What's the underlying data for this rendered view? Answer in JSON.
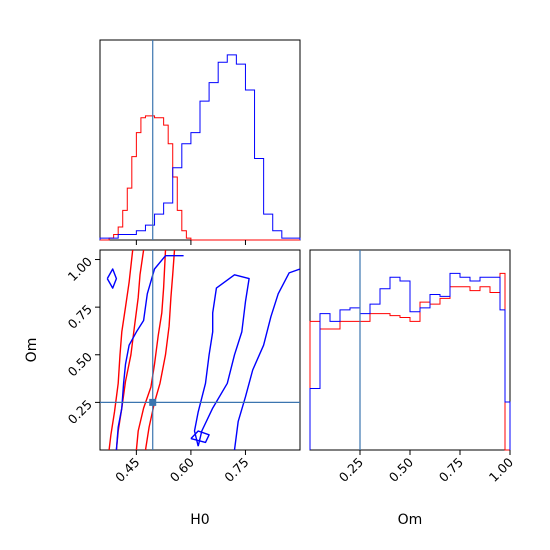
{
  "chart_data": {
    "type": "corner",
    "panels": {
      "h0_hist": {
        "type": "histogram",
        "xlim": [
          0.35,
          0.9
        ],
        "truth": 0.495,
        "series": [
          {
            "color": "#ff0000",
            "edges": [
              0.35,
              0.375,
              0.3875,
              0.4,
              0.4125,
              0.425,
              0.4375,
              0.45,
              0.4625,
              0.475,
              0.4875,
              0.5,
              0.5125,
              0.525,
              0.5375,
              0.55,
              0.5625,
              0.575,
              0.5875,
              0.6,
              0.9
            ],
            "heights": [
              0,
              0.01,
              0.03,
              0.07,
              0.16,
              0.28,
              0.45,
              0.58,
              0.66,
              0.67,
              0.67,
              0.66,
              0.66,
              0.62,
              0.52,
              0.34,
              0.16,
              0.05,
              0.01,
              0
            ]
          },
          {
            "color": "#0000ff",
            "edges": [
              0.35,
              0.4,
              0.45,
              0.475,
              0.5,
              0.525,
              0.55,
              0.575,
              0.6,
              0.625,
              0.65,
              0.675,
              0.7,
              0.725,
              0.75,
              0.775,
              0.8,
              0.825,
              0.85,
              0.9
            ],
            "heights": [
              0.01,
              0.03,
              0.05,
              0.08,
              0.14,
              0.2,
              0.39,
              0.52,
              0.58,
              0.75,
              0.85,
              0.96,
              1.0,
              0.95,
              0.81,
              0.44,
              0.14,
              0.05,
              0.01
            ]
          }
        ]
      },
      "om_hist": {
        "type": "histogram",
        "xlim": [
          0.0,
          1.0
        ],
        "xlabel": "Om",
        "xticks": [
          "0.25",
          "0.50",
          "0.75",
          "1.00"
        ],
        "truth": 0.25,
        "series": [
          {
            "color": "#ff0000",
            "edges": [
              0.0,
              0.05,
              0.15,
              0.2,
              0.3,
              0.35,
              0.4,
              0.45,
              0.5,
              0.55,
              0.6,
              0.65,
              0.7,
              0.75,
              0.8,
              0.85,
              0.9,
              0.95,
              0.975,
              1.0
            ],
            "heights": [
              0.67,
              0.63,
              0.67,
              0.67,
              0.71,
              0.71,
              0.7,
              0.69,
              0.67,
              0.77,
              0.76,
              0.79,
              0.85,
              0.85,
              0.83,
              0.85,
              0.82,
              0.92,
              0.0
            ]
          },
          {
            "color": "#0000ff",
            "edges": [
              0.0,
              0.05,
              0.1,
              0.15,
              0.2,
              0.25,
              0.3,
              0.35,
              0.4,
              0.45,
              0.5,
              0.55,
              0.6,
              0.65,
              0.7,
              0.75,
              0.8,
              0.85,
              0.9,
              0.95,
              0.975,
              1.0
            ],
            "heights": [
              0.32,
              0.71,
              0.67,
              0.73,
              0.74,
              0.71,
              0.76,
              0.84,
              0.9,
              0.88,
              0.72,
              0.74,
              0.81,
              0.8,
              0.92,
              0.9,
              0.88,
              0.9,
              0.9,
              0.73,
              0.25
            ]
          }
        ]
      },
      "joint": {
        "type": "contour",
        "xlim": [
          0.35,
          0.9
        ],
        "ylim": [
          0.0,
          1.05
        ],
        "xlabel": "H0",
        "ylabel": "Om",
        "xticks": [
          "0.45",
          "0.60",
          "0.75"
        ],
        "yticks": [
          "0.25",
          "0.50",
          "0.75",
          "1.00"
        ],
        "truth": {
          "x": 0.495,
          "y": 0.25
        },
        "contours": [
          {
            "color": "#ff0000",
            "points": [
              [
                0.375,
                0.0
              ],
              [
                0.38,
                0.08
              ],
              [
                0.39,
                0.2
              ],
              [
                0.4,
                0.35
              ],
              [
                0.405,
                0.5
              ],
              [
                0.41,
                0.62
              ],
              [
                0.42,
                0.75
              ],
              [
                0.43,
                0.88
              ],
              [
                0.44,
                1.05
              ]
            ]
          },
          {
            "color": "#ff0000",
            "points": [
              [
                0.395,
                0.0
              ],
              [
                0.4,
                0.1
              ],
              [
                0.41,
                0.22
              ],
              [
                0.42,
                0.36
              ],
              [
                0.435,
                0.5
              ],
              [
                0.445,
                0.65
              ],
              [
                0.455,
                0.8
              ],
              [
                0.46,
                0.92
              ],
              [
                0.47,
                1.05
              ]
            ]
          },
          {
            "color": "#ff0000",
            "points": [
              [
                0.45,
                0.0
              ],
              [
                0.455,
                0.1
              ],
              [
                0.47,
                0.22
              ],
              [
                0.49,
                0.33
              ],
              [
                0.5,
                0.45
              ],
              [
                0.51,
                0.6
              ],
              [
                0.52,
                0.72
              ],
              [
                0.525,
                0.85
              ],
              [
                0.53,
                1.05
              ]
            ]
          },
          {
            "color": "#ff0000",
            "points": [
              [
                0.475,
                0.0
              ],
              [
                0.485,
                0.12
              ],
              [
                0.5,
                0.25
              ],
              [
                0.515,
                0.35
              ],
              [
                0.53,
                0.5
              ],
              [
                0.54,
                0.65
              ],
              [
                0.545,
                0.8
              ],
              [
                0.55,
                0.92
              ],
              [
                0.555,
                1.05
              ]
            ]
          },
          {
            "color": "#0000ff",
            "points": [
              [
                0.395,
                0.0
              ],
              [
                0.4,
                0.12
              ],
              [
                0.41,
                0.22
              ],
              [
                0.415,
                0.35
              ],
              [
                0.42,
                0.45
              ],
              [
                0.43,
                0.55
              ],
              [
                0.45,
                0.62
              ],
              [
                0.47,
                0.68
              ],
              [
                0.48,
                0.82
              ],
              [
                0.5,
                0.95
              ],
              [
                0.53,
                1.02
              ],
              [
                0.58,
                1.02
              ]
            ]
          },
          {
            "color": "#0000ff",
            "points": [
              [
                0.62,
                0.02
              ],
              [
                0.61,
                0.1
              ],
              [
                0.62,
                0.2
              ],
              [
                0.64,
                0.35
              ],
              [
                0.65,
                0.5
              ],
              [
                0.66,
                0.62
              ],
              [
                0.66,
                0.72
              ],
              [
                0.67,
                0.85
              ],
              [
                0.72,
                0.92
              ],
              [
                0.76,
                0.9
              ],
              [
                0.75,
                0.78
              ],
              [
                0.74,
                0.62
              ],
              [
                0.72,
                0.5
              ],
              [
                0.7,
                0.35
              ],
              [
                0.66,
                0.22
              ],
              [
                0.63,
                0.1
              ],
              [
                0.62,
                0.02
              ]
            ]
          },
          {
            "color": "#0000ff",
            "points": [
              [
                0.72,
                0.0
              ],
              [
                0.73,
                0.15
              ],
              [
                0.75,
                0.28
              ],
              [
                0.77,
                0.42
              ],
              [
                0.8,
                0.55
              ],
              [
                0.82,
                0.7
              ],
              [
                0.84,
                0.82
              ],
              [
                0.87,
                0.93
              ],
              [
                0.9,
                0.95
              ]
            ]
          },
          {
            "color": "#0000ff",
            "points": [
              [
                0.37,
                0.9
              ],
              [
                0.385,
                0.95
              ],
              [
                0.395,
                0.9
              ],
              [
                0.385,
                0.85
              ],
              [
                0.37,
                0.9
              ]
            ]
          },
          {
            "color": "#0000ff",
            "points": [
              [
                0.6,
                0.06
              ],
              [
                0.62,
                0.1
              ],
              [
                0.65,
                0.08
              ],
              [
                0.64,
                0.04
              ],
              [
                0.6,
                0.06
              ]
            ]
          }
        ]
      }
    }
  }
}
